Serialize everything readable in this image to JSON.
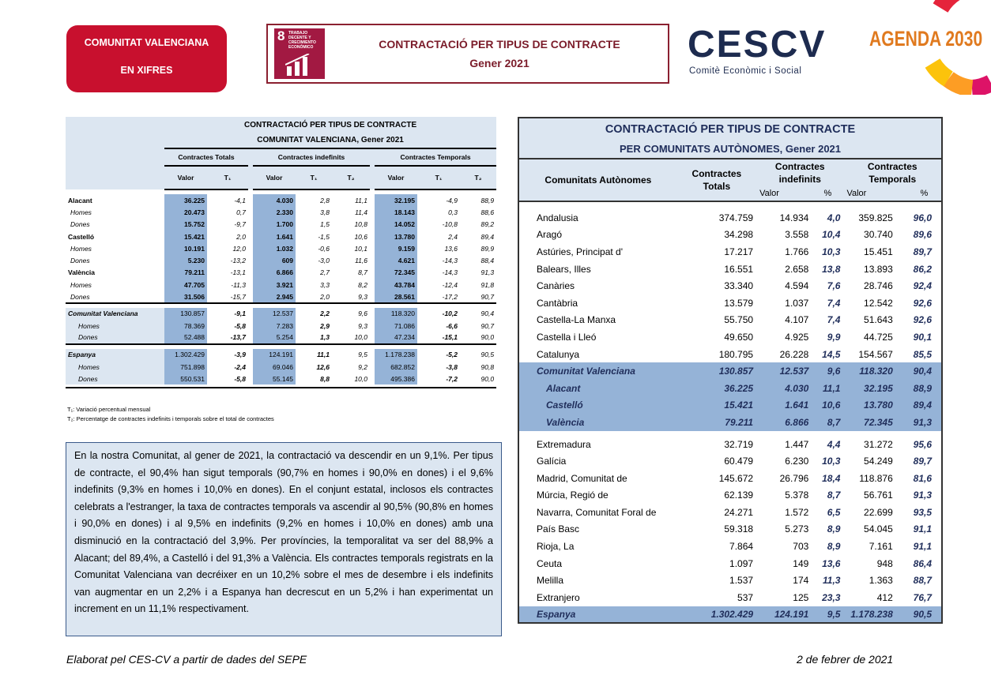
{
  "header": {
    "badge": [
      "COMUNITAT VALENCIANA",
      "EN XIFRES"
    ],
    "sdg_number": "8",
    "sdg_text": "TRABAJO DECENTE Y CRECIMIENTO ECONÓMICO",
    "title": "CONTRACTACIÓ PER TIPUS DE CONTRACTE",
    "subtitle": "Gener 2021",
    "logo": "CESCV",
    "logo_sub": "Comitè Econòmic i Social",
    "agenda": "AGENDA 2030"
  },
  "left_table": {
    "title": "CONTRACTACIÓ PER TIPUS DE CONTRACTE",
    "subtitle": "COMUNITAT VALENCIANA, Gener 2021",
    "groups": [
      "Contractes Totals",
      "Contractes indefinits",
      "Contractes Temporals"
    ],
    "subheaders": [
      "Valor",
      "T₁",
      "Valor",
      "T₁",
      "T₂",
      "Valor",
      "T₁",
      "T₂"
    ],
    "blocks": [
      {
        "rows": [
          [
            "Alacant",
            "36.225",
            "-4,1",
            "4.030",
            "2,8",
            "11,1",
            "32.195",
            "-4,9",
            "88,9"
          ],
          [
            "Homes",
            "20.473",
            "0,7",
            "2.330",
            "3,8",
            "11,4",
            "18.143",
            "0,3",
            "88,6"
          ],
          [
            "Dones",
            "15.752",
            "-9,7",
            "1.700",
            "1,5",
            "10,8",
            "14.052",
            "-10,8",
            "89,2"
          ],
          [
            "Castelló",
            "15.421",
            "2,0",
            "1.641",
            "-1,5",
            "10,6",
            "13.780",
            "2,4",
            "89,4"
          ],
          [
            "Homes",
            "10.191",
            "12,0",
            "1.032",
            "-0,6",
            "10,1",
            "9.159",
            "13,6",
            "89,9"
          ],
          [
            "Dones",
            "5.230",
            "-13,2",
            "609",
            "-3,0",
            "11,6",
            "4.621",
            "-14,3",
            "88,4"
          ],
          [
            "València",
            "79.211",
            "-13,1",
            "6.866",
            "2,7",
            "8,7",
            "72.345",
            "-14,3",
            "91,3"
          ],
          [
            "Homes",
            "47.705",
            "-11,3",
            "3.921",
            "3,3",
            "8,2",
            "43.784",
            "-12,4",
            "91,8"
          ],
          [
            "Dones",
            "31.506",
            "-15,7",
            "2.945",
            "2,0",
            "9,3",
            "28.561",
            "-17,2",
            "90,7"
          ]
        ]
      },
      {
        "rows": [
          [
            "Comunitat Valenciana",
            "130.857",
            "-9,1",
            "12.537",
            "2,2",
            "9,6",
            "118.320",
            "-10,2",
            "90,4"
          ],
          [
            "Homes",
            "78.369",
            "-5,8",
            "7.283",
            "2,9",
            "9,3",
            "71.086",
            "-6,6",
            "90,7"
          ],
          [
            "Dones",
            "52.488",
            "-13,7",
            "5.254",
            "1,3",
            "10,0",
            "47.234",
            "-15,1",
            "90,0"
          ]
        ]
      },
      {
        "rows": [
          [
            "Espanya",
            "1.302.429",
            "-3,9",
            "124.191",
            "11,1",
            "9,5",
            "1.178.238",
            "-5,2",
            "90,5"
          ],
          [
            "Homes",
            "751.898",
            "-2,4",
            "69.046",
            "12,6",
            "9,2",
            "682.852",
            "-3,8",
            "90,8"
          ],
          [
            "Dones",
            "550.531",
            "-5,8",
            "55.145",
            "8,8",
            "10,0",
            "495.386",
            "-7,2",
            "90,0"
          ]
        ]
      }
    ],
    "notes": [
      "T₁: Variació percentual mensual",
      "T₂: Percentatge de contractes indefinits i temporals sobre el total de contractes"
    ]
  },
  "paragraph": "En la nostra Comunitat, al gener de 2021, la contractació va descendir en un 9,1%. Per tipus de contracte, el 90,4% han sigut temporals (90,7% en homes i 90,0% en dones) i el 9,6% indefinits (9,3% en homes i 10,0% en dones). En el conjunt estatal, inclosos els contractes celebrats a l'estranger, la taxa de contractes temporals va ascendir al 90,5% (90,8% en homes i 90,0% en dones) i al 9,5% en indefinits (9,2% en homes i 10,0% en dones) amb una disminució en la contractació del 3,9%. Per províncies, la temporalitat va ser del 88,9% a Alacant; del 89,4%, a Castelló i del 91,3% a València. Els contractes temporals registrats en la Comunitat Valenciana van decréixer en un 10,2% sobre el mes de desembre i els indefinits van augmentar en un 2,2% i a Espanya han decrescut en un 5,2% i han experimentat un increment en un 11,1% respectivament.",
  "right_table": {
    "title": "CONTRACTACIÓ PER TIPUS DE CONTRACTE",
    "subtitle": "PER COMUNITATS AUTÒNOMES, Gener 2021",
    "headers": [
      "Comunitats Autònomes",
      "Contractes Totals",
      "Contractes indefinits",
      "Contractes Temporals"
    ],
    "subheaders": [
      "Valor",
      "%",
      "Valor",
      "%"
    ],
    "groups": [
      {
        "rows": [
          [
            "Andalusia",
            "374.759",
            "14.934",
            "4,0",
            "359.825",
            "96,0"
          ],
          [
            "Aragó",
            "34.298",
            "3.558",
            "10,4",
            "30.740",
            "89,6"
          ],
          [
            "Astúries, Principat d'",
            "17.217",
            "1.766",
            "10,3",
            "15.451",
            "89,7"
          ],
          [
            "Balears, Illes",
            "16.551",
            "2.658",
            "13,8",
            "13.893",
            "86,2"
          ],
          [
            "Canàries",
            "33.340",
            "4.594",
            "7,6",
            "28.746",
            "92,4"
          ],
          [
            "Cantàbria",
            "13.579",
            "1.037",
            "7,4",
            "12.542",
            "92,6"
          ],
          [
            "Castella-La Manxa",
            "55.750",
            "4.107",
            "7,4",
            "51.643",
            "92,6"
          ],
          [
            "Castella i Lleó",
            "49.650",
            "4.925",
            "9,9",
            "44.725",
            "90,1"
          ],
          [
            "Catalunya",
            "180.795",
            "26.228",
            "14,5",
            "154.567",
            "85,5"
          ]
        ]
      },
      {
        "rows": [
          [
            "Comunitat Valenciana",
            "130.857",
            "12.537",
            "9,6",
            "118.320",
            "90,4"
          ],
          [
            "Alacant",
            "36.225",
            "4.030",
            "11,1",
            "32.195",
            "88,9"
          ],
          [
            "Castelló",
            "15.421",
            "1.641",
            "10,6",
            "13.780",
            "89,4"
          ],
          [
            "València",
            "79.211",
            "6.866",
            "8,7",
            "72.345",
            "91,3"
          ]
        ]
      },
      {
        "rows": [
          [
            "Extremadura",
            "32.719",
            "1.447",
            "4,4",
            "31.272",
            "95,6"
          ],
          [
            "Galícia",
            "60.479",
            "6.230",
            "10,3",
            "54.249",
            "89,7"
          ],
          [
            "Madrid, Comunitat de",
            "145.672",
            "26.796",
            "18,4",
            "118.876",
            "81,6"
          ],
          [
            "Múrcia, Regió de",
            "62.139",
            "5.378",
            "8,7",
            "56.761",
            "91,3"
          ],
          [
            "Navarra, Comunitat Foral de",
            "24.271",
            "1.572",
            "6,5",
            "22.699",
            "93,5"
          ],
          [
            "País Basc",
            "59.318",
            "5.273",
            "8,9",
            "54.045",
            "91,1"
          ],
          [
            "Rioja, La",
            "7.864",
            "703",
            "8,9",
            "7.161",
            "91,1"
          ],
          [
            "Ceuta",
            "1.097",
            "149",
            "13,6",
            "948",
            "86,4"
          ],
          [
            "Melilla",
            "1.537",
            "174",
            "11,3",
            "1.363",
            "88,7"
          ],
          [
            "Extranjero",
            "537",
            "125",
            "23,3",
            "412",
            "76,7"
          ]
        ]
      },
      {
        "rows": [
          [
            "Espanya",
            "1.302.429",
            "124.191",
            "9,5",
            "1.178.238",
            "90,5"
          ]
        ]
      }
    ]
  },
  "footer": {
    "left": "Elaborat pel CES-CV a partir de dades del SEPE",
    "right": "2 de febrer de 2021"
  }
}
